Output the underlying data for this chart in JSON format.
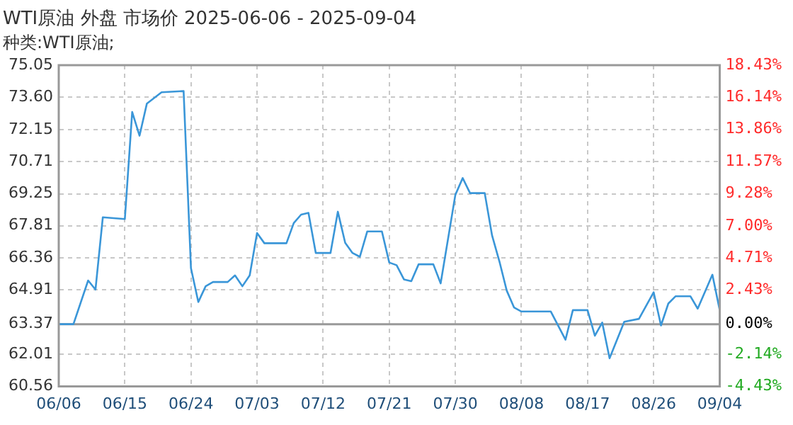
{
  "chart_data": {
    "type": "line",
    "title": "WTI原油 外盘 市场价 2025-06-06 - 2025-09-04",
    "subtitle": "种类:WTI原油;",
    "x": [
      "2025-06-06",
      "2025-06-08",
      "2025-06-10",
      "2025-06-11",
      "2025-06-12",
      "2025-06-15",
      "2025-06-16",
      "2025-06-17",
      "2025-06-18",
      "2025-06-20",
      "2025-06-23",
      "2025-06-24",
      "2025-06-25",
      "2025-06-26",
      "2025-06-27",
      "2025-06-29",
      "2025-06-30",
      "2025-07-01",
      "2025-07-02",
      "2025-07-03",
      "2025-07-04",
      "2025-07-07",
      "2025-07-08",
      "2025-07-09",
      "2025-07-10",
      "2025-07-11",
      "2025-07-13",
      "2025-07-14",
      "2025-07-15",
      "2025-07-16",
      "2025-07-17",
      "2025-07-18",
      "2025-07-20",
      "2025-07-21",
      "2025-07-22",
      "2025-07-23",
      "2025-07-24",
      "2025-07-25",
      "2025-07-27",
      "2025-07-28",
      "2025-07-30",
      "2025-07-31",
      "2025-08-01",
      "2025-08-03",
      "2025-08-04",
      "2025-08-05",
      "2025-08-06",
      "2025-08-07",
      "2025-08-08",
      "2025-08-12",
      "2025-08-14",
      "2025-08-15",
      "2025-08-17",
      "2025-08-18",
      "2025-08-19",
      "2025-08-20",
      "2025-08-22",
      "2025-08-24",
      "2025-08-26",
      "2025-08-27",
      "2025-08-28",
      "2025-08-29",
      "2025-08-31",
      "2025-09-01",
      "2025-09-03",
      "2025-09-04"
    ],
    "series": [
      {
        "color": "#3a96d8",
        "values": [
          63.37,
          63.37,
          65.34,
          64.93,
          68.19,
          68.11,
          72.94,
          71.87,
          73.32,
          73.83,
          73.88,
          65.9,
          64.37,
          65.08,
          65.27,
          65.27,
          65.57,
          65.08,
          65.57,
          67.48,
          67.02,
          67.02,
          67.93,
          68.31,
          68.39,
          66.58,
          66.58,
          68.44,
          67.04,
          66.58,
          66.41,
          67.55,
          67.55,
          66.15,
          66.03,
          65.39,
          65.31,
          66.07,
          66.07,
          65.21,
          69.2,
          69.96,
          69.28,
          69.28,
          67.37,
          66.2,
          64.88,
          64.12,
          63.94,
          63.94,
          62.67,
          64.0,
          64.0,
          62.85,
          63.44,
          61.83,
          63.48,
          63.61,
          64.81,
          63.31,
          64.3,
          64.63,
          64.63,
          64.07,
          65.6,
          64.0
        ]
      }
    ],
    "xlim": [
      "2025-06-06",
      "2025-09-04"
    ],
    "xticks": [
      {
        "value": "2025-06-06",
        "label": "06/06"
      },
      {
        "value": "2025-06-15",
        "label": "06/15"
      },
      {
        "value": "2025-06-24",
        "label": "06/24"
      },
      {
        "value": "2025-07-03",
        "label": "07/03"
      },
      {
        "value": "2025-07-12",
        "label": "07/12"
      },
      {
        "value": "2025-07-21",
        "label": "07/21"
      },
      {
        "value": "2025-07-30",
        "label": "07/30"
      },
      {
        "value": "2025-08-08",
        "label": "08/08"
      },
      {
        "value": "2025-08-17",
        "label": "08/17"
      },
      {
        "value": "2025-08-26",
        "label": "08/26"
      },
      {
        "value": "2025-09-04",
        "label": "09/04"
      }
    ],
    "ylim": [
      60.56,
      75.05
    ],
    "yticks": [
      60.56,
      62.01,
      63.37,
      64.91,
      66.36,
      67.81,
      69.25,
      70.71,
      72.15,
      {
        "value": 73.6,
        "label": "73.60"
      },
      75.05
    ],
    "y2lim": [
      -4.43,
      18.43
    ],
    "y2ticks": [
      {
        "value": -4.43,
        "label": "-4.43%"
      },
      {
        "value": -2.14,
        "label": "-2.14%"
      },
      {
        "value": 0,
        "label": "0.00%"
      },
      {
        "value": 2.43,
        "label": "2.43%"
      },
      {
        "value": 4.71,
        "label": "4.71%"
      },
      {
        "value": 7,
        "label": "7.00%"
      },
      {
        "value": 9.28,
        "label": "9.28%"
      },
      {
        "value": 11.57,
        "label": "11.57%"
      },
      {
        "value": 13.86,
        "label": "13.86%"
      },
      {
        "value": 16.14,
        "label": "16.14%"
      },
      {
        "value": 18.43,
        "label": "18.43%"
      }
    ],
    "ref_lines": [
      {
        "axis": "y2",
        "value": 0,
        "color": "#999999"
      }
    ],
    "grid": true,
    "legend": false,
    "marker": "none",
    "line_style": "solid"
  }
}
